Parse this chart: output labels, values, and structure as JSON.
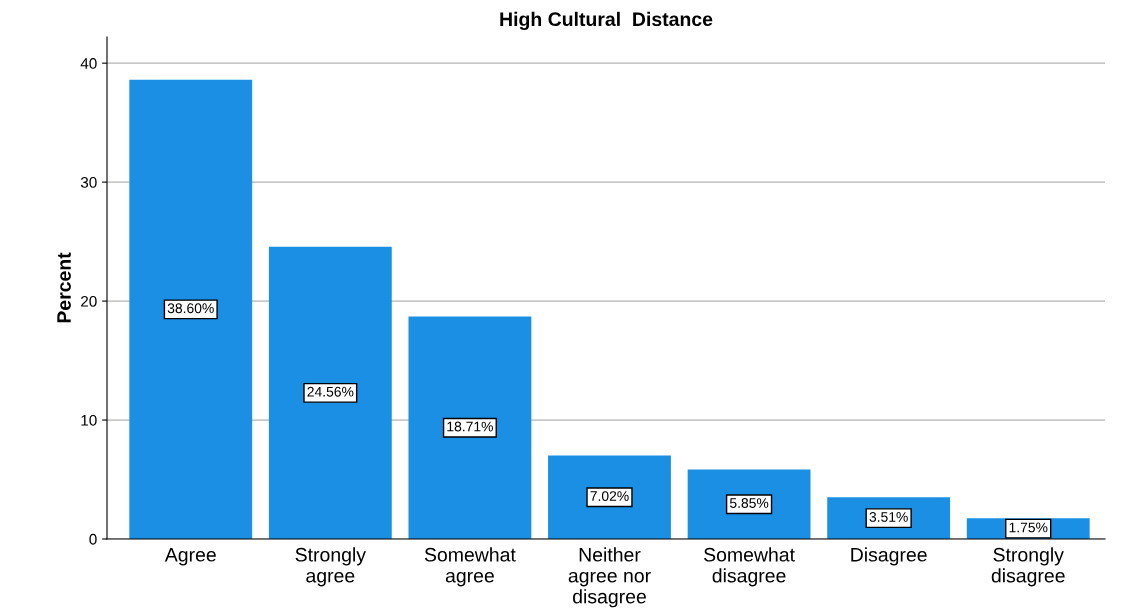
{
  "chart_data": {
    "type": "bar",
    "title": "High Cultural  Distance",
    "ylabel": "Percent",
    "categories": [
      "Agree",
      "Strongly\nagree",
      "Somewhat\nagree",
      "Neither\nagree nor\ndisagree",
      "Somewhat\ndisagree",
      "Disagree",
      "Strongly\ndisagree"
    ],
    "values": [
      38.6,
      24.56,
      18.71,
      7.02,
      5.85,
      3.51,
      1.75
    ],
    "value_labels": [
      "38.60%",
      "24.56%",
      "18.71%",
      "7.02%",
      "5.85%",
      "3.51%",
      "1.75%"
    ],
    "color": "#1a8fe3",
    "ylim": [
      0,
      42.2
    ],
    "yticks": [
      0,
      10,
      20,
      30,
      40
    ],
    "grid": "y",
    "legend": false
  }
}
